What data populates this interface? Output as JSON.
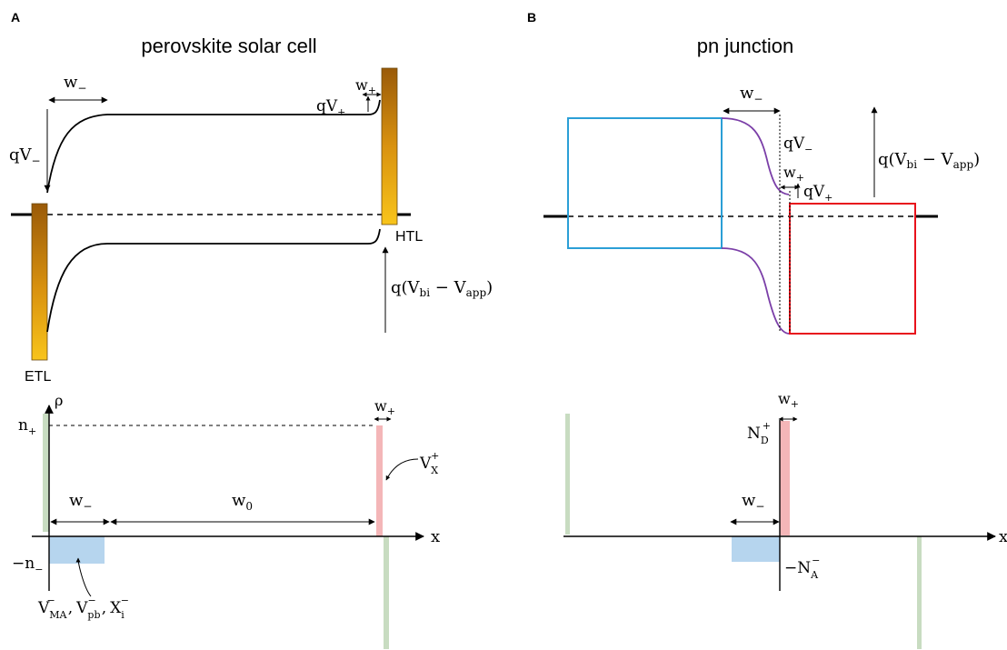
{
  "panel_a": {
    "panel_letter": "A",
    "title": "perovskite solar cell",
    "etl_label": "ETL",
    "htl_label": "HTL",
    "w_minus_top": "w",
    "w_minus_top_sub": "−",
    "w_plus_top": "w",
    "w_plus_top_sub": "+",
    "qv_plus": "qV",
    "qv_plus_sub": "+",
    "qv_minus": "qV",
    "qv_minus_sub": "−",
    "bias_label_pre": "q(V",
    "bias_label_bi": "bi",
    "bias_label_mid": " − V",
    "bias_label_app": "app",
    "bias_label_post": ")",
    "rho_label": "ρ",
    "n_plus": "n",
    "n_plus_sub": "+",
    "n_minus": "−n",
    "n_minus_sub": "−",
    "w_plus_bottom": "w",
    "w_plus_bottom_sub": "+",
    "w_minus_bottom": "w",
    "w_minus_bottom_sub": "−",
    "w0": "w",
    "w0_sub": "0",
    "x_axis": "x",
    "vx_label": "V",
    "vx_sub": "X",
    "vx_sup": "+",
    "species_v1": "V",
    "species_v1_sup": "−",
    "species_v1_sub": "MA",
    "species_v2": "V",
    "species_v2_sup": "−",
    "species_v2_sub": "pb",
    "species_x": "X",
    "species_x_sup": "−",
    "species_x_sub": "i",
    "species_sep": ","
  },
  "panel_b": {
    "panel_letter": "B",
    "title": "pn junction",
    "w_minus_top": "w",
    "w_minus_top_sub": "−",
    "qv_minus": "qV",
    "qv_minus_sub": "−",
    "w_plus_top": "w",
    "w_plus_top_sub": "+",
    "qv_plus": "qV",
    "qv_plus_sub": "+",
    "bias_label_pre": "q(V",
    "bias_label_bi": "bi",
    "bias_label_mid": " − V",
    "bias_label_app": "app",
    "bias_label_post": ")",
    "w_plus_bottom": "w",
    "w_plus_bottom_sub": "+",
    "nd_label": "N",
    "nd_sub": "D",
    "nd_sup": "+",
    "w_minus_bottom": "w",
    "w_minus_bottom_sub": "−",
    "na_label": "−N",
    "na_sub": "A",
    "na_sup": "−",
    "x_axis": "x"
  },
  "colors": {
    "electrode_dark": "#a0600a",
    "electrode_light": "#f6c21a",
    "n_region_box": "#2b9fd6",
    "p_region_box": "#e8121c",
    "pn_band": "#7b3fa8",
    "positive_charge": "#f4b6b8",
    "negative_charge": "#b6d5ee",
    "ion_green": "#c8dcc1"
  }
}
